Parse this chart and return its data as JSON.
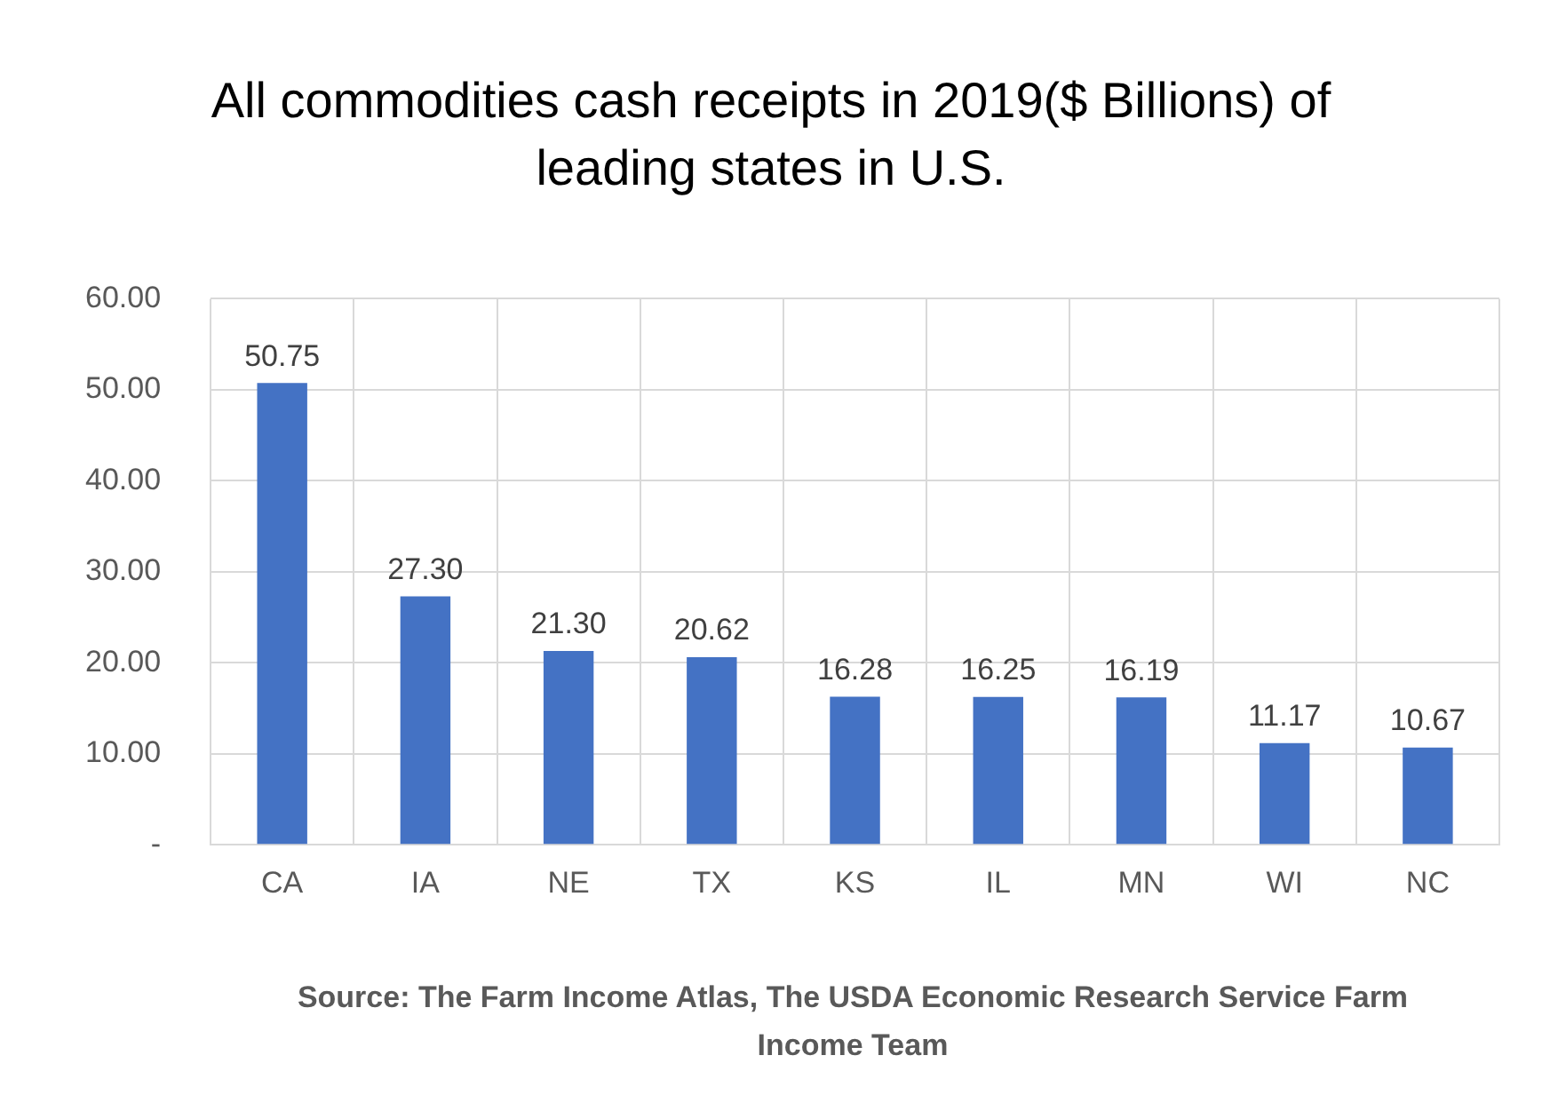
{
  "chart_data": {
    "type": "bar",
    "title": "All commodities cash receipts in 2019($ Billions) of leading states in U.S.",
    "categories": [
      "CA",
      "IA",
      "NE",
      "TX",
      "KS",
      "IL",
      "MN",
      "WI",
      "NC"
    ],
    "values": [
      50.75,
      27.3,
      21.3,
      20.62,
      16.28,
      16.25,
      16.19,
      11.17,
      10.67
    ],
    "value_labels": [
      "50.75",
      "27.30",
      "21.30",
      "20.62",
      "16.28",
      "16.25",
      "16.19",
      "11.17",
      "10.67"
    ],
    "color": "#4472c4",
    "ylim": [
      0,
      60
    ],
    "yticks": [
      {
        "value": 0,
        "label": "-"
      },
      {
        "value": 10,
        "label": "10.00"
      },
      {
        "value": 20,
        "label": "20.00"
      },
      {
        "value": 30,
        "label": "30.00"
      },
      {
        "value": 40,
        "label": "40.00"
      },
      {
        "value": 50,
        "label": "50.00"
      },
      {
        "value": 60,
        "label": "60.00"
      }
    ],
    "grid": true,
    "annotations": [
      "Source: The Farm Income Atlas, The USDA Economic Research Service Farm Income Team"
    ]
  }
}
